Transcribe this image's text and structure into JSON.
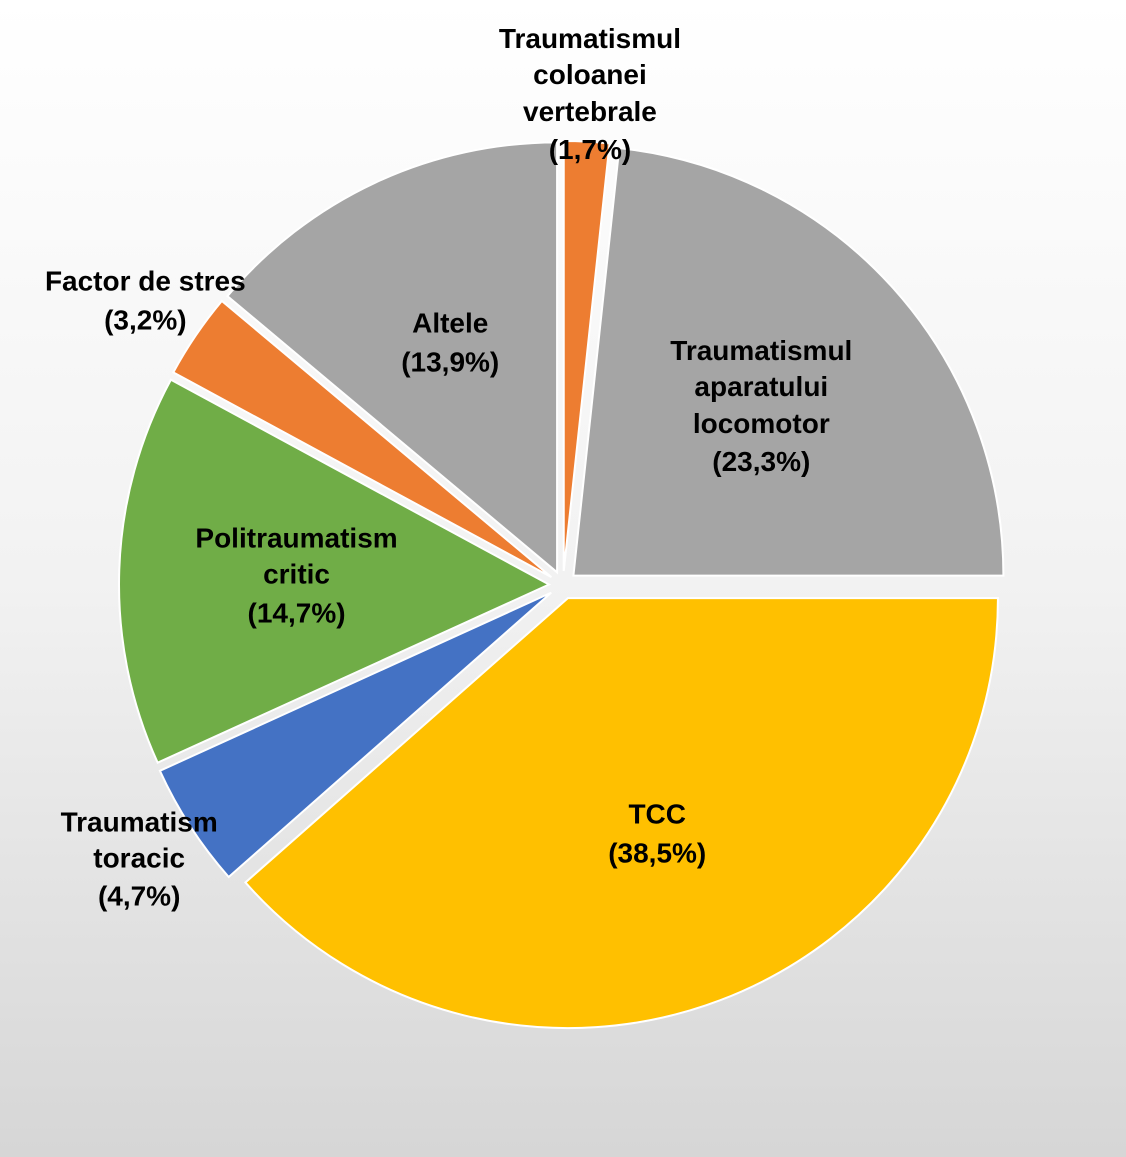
{
  "chart_data": {
    "type": "pie",
    "categories": [
      "Traumatismul coloanei vertebrale",
      "Traumatismul aparatului locomotor",
      "TCC",
      "Traumatism toracic",
      "Politraumatism critic",
      "Factor de stres",
      "Altele"
    ],
    "values": [
      1.7,
      23.3,
      38.5,
      4.7,
      14.7,
      3.2,
      13.9
    ],
    "value_labels": [
      "(1,7%)",
      "(23,3%)",
      "(38,5%)",
      "(4,7%)",
      "(14,7%)",
      "(3,2%)",
      "(13,9%)"
    ],
    "colors": [
      "#ed7d31",
      "#a5a5a5",
      "#ffc000",
      "#4472c4",
      "#70ad47",
      "#ed7d31",
      "#a5a5a5"
    ]
  }
}
